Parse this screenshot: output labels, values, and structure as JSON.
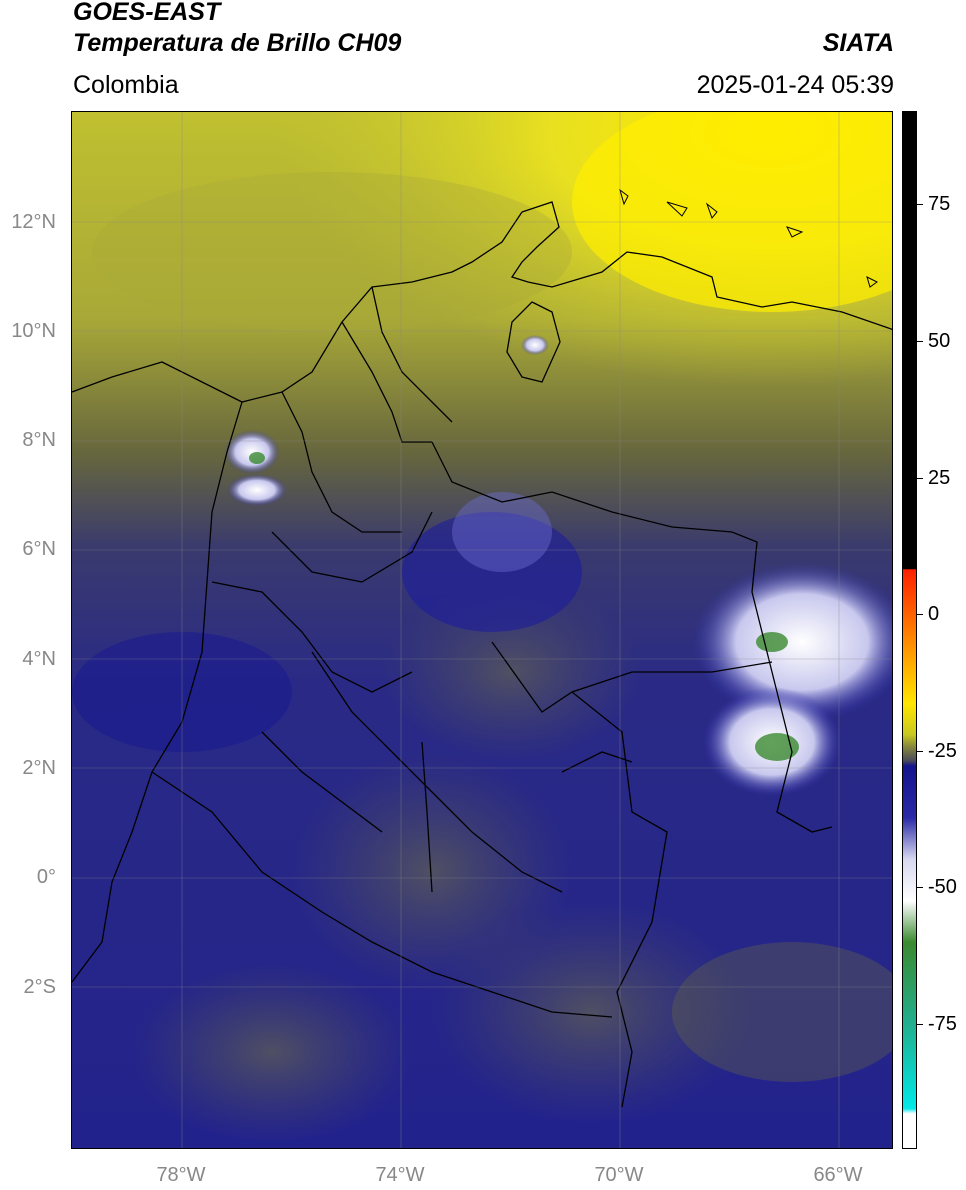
{
  "header": {
    "satellite": "GOES-EAST",
    "product": "Temperatura de Brillo CH09",
    "organization": "SIATA",
    "region": "Colombia",
    "timestamp": "2025-01-24 05:39"
  },
  "map": {
    "lat_ticks": [
      {
        "label": "12°N",
        "value": 12
      },
      {
        "label": "10°N",
        "value": 10
      },
      {
        "label": "8°N",
        "value": 8
      },
      {
        "label": "6°N",
        "value": 6
      },
      {
        "label": "4°N",
        "value": 4
      },
      {
        "label": "2°N",
        "value": 2
      },
      {
        "label": "0°",
        "value": 0
      },
      {
        "label": "2°S",
        "value": -2
      }
    ],
    "lon_ticks": [
      {
        "label": "78°W",
        "value": -78
      },
      {
        "label": "74°W",
        "value": -74
      },
      {
        "label": "70°W",
        "value": -70
      },
      {
        "label": "66°W",
        "value": -66
      }
    ],
    "extent": {
      "lon_min": -80,
      "lon_max": -65,
      "lat_min": -5,
      "lat_max": 14
    }
  },
  "colorbar": {
    "range": [
      -100,
      90
    ],
    "ticks": [
      {
        "label": "75",
        "value": 75
      },
      {
        "label": "50",
        "value": 50
      },
      {
        "label": "25",
        "value": 25
      },
      {
        "label": "0",
        "value": 0
      },
      {
        "label": "-25",
        "value": -25
      },
      {
        "label": "-50",
        "value": -50
      },
      {
        "label": "-75",
        "value": -75
      }
    ],
    "colors": {
      "black": "#000000",
      "red": "#ff2000",
      "orange": "#ff9a00",
      "yellow": "#ffe600",
      "olive": "#8e8e3a",
      "gray": "#4a4a5a",
      "navy": "#14148c",
      "blue": "#2a2aa8",
      "light": "#d8d8f0",
      "white": "#ffffff",
      "green": "#3a8a30",
      "teal": "#20b090",
      "cyan": "#00e8e8"
    }
  }
}
